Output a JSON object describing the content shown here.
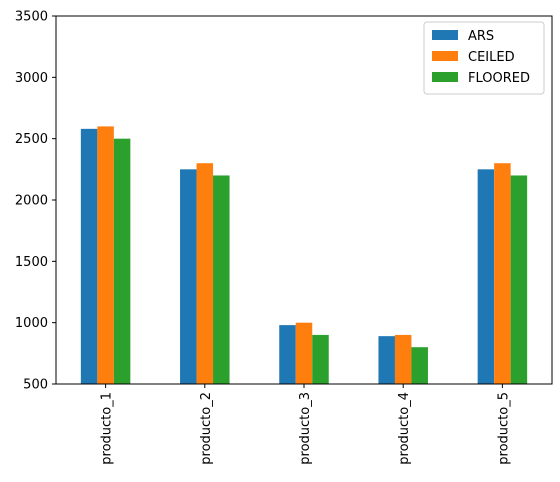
{
  "chart_data": {
    "type": "bar",
    "title": "",
    "xlabel": "",
    "ylabel": "",
    "categories": [
      "producto_1",
      "producto_2",
      "producto_3",
      "producto_4",
      "producto_5"
    ],
    "series": [
      {
        "name": "ARS",
        "color": "#1f77b4",
        "values": [
          2580,
          2250,
          980,
          890,
          2250
        ]
      },
      {
        "name": "CEILED",
        "color": "#ff7f0e",
        "values": [
          2600,
          2300,
          1000,
          900,
          2300
        ]
      },
      {
        "name": "FLOORED",
        "color": "#2ca02c",
        "values": [
          2500,
          2200,
          900,
          800,
          2200
        ]
      }
    ],
    "ylim": [
      500,
      3500
    ],
    "yticks": [
      500,
      1000,
      1500,
      2000,
      2500,
      3000,
      3500
    ],
    "grid": false,
    "legend_position": "top-right"
  }
}
